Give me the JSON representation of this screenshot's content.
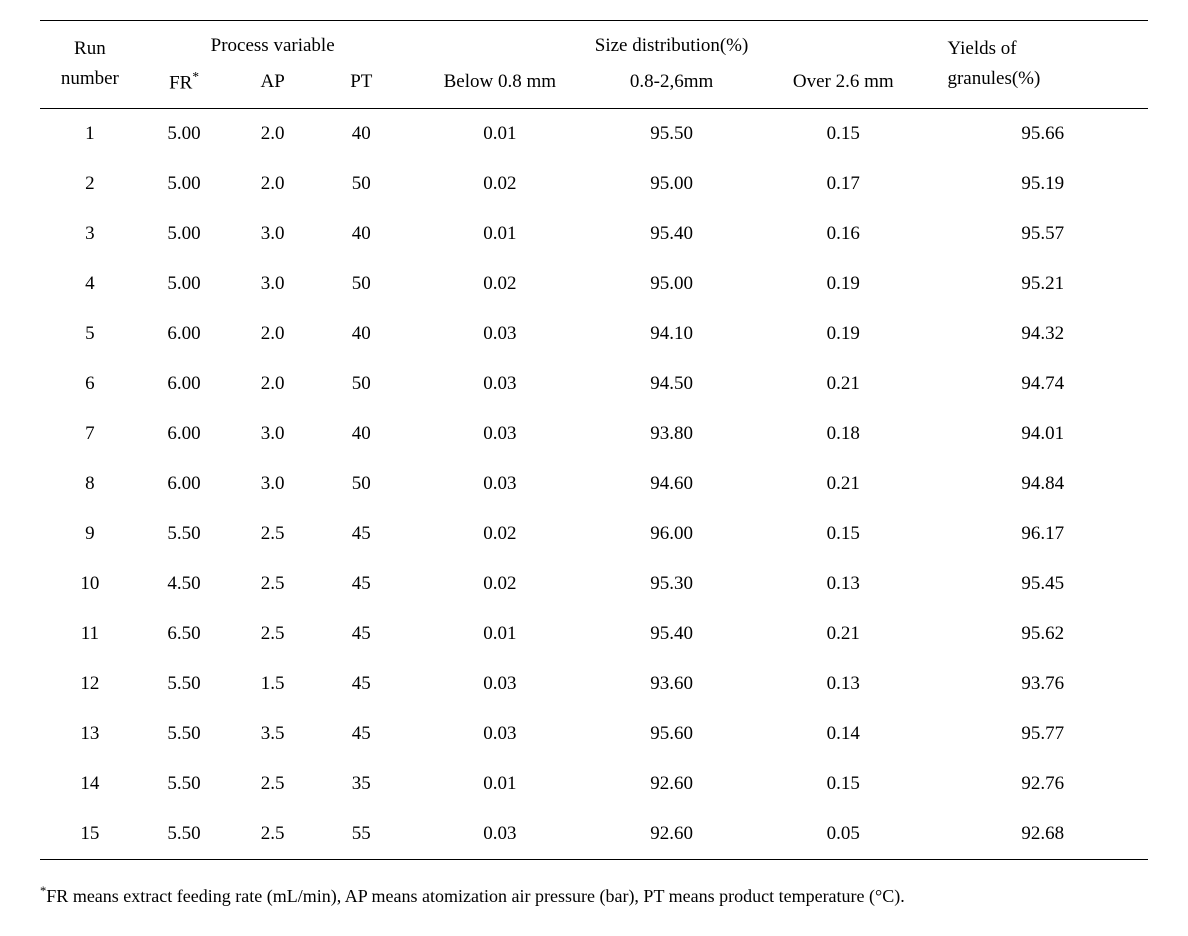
{
  "headers": {
    "run_top": "Run",
    "run_bot": "number",
    "process_var": "Process   variable",
    "fr": "FR",
    "fr_sup": "*",
    "ap": "AP",
    "pt": "PT",
    "size_dist": "Size   distribution(%)",
    "sd_below": "Below 0.8 mm",
    "sd_mid": "0.8-2,6mm",
    "sd_over": "Over 2.6 mm",
    "yield_top": "Yields   of",
    "yield_bot": "granules(%)"
  },
  "rows": [
    {
      "run": "1",
      "fr": "5.00",
      "ap": "2.0",
      "pt": "40",
      "sd1": "0.01",
      "sd2": "95.50",
      "sd3": "0.15",
      "yield": "95.66"
    },
    {
      "run": "2",
      "fr": "5.00",
      "ap": "2.0",
      "pt": "50",
      "sd1": "0.02",
      "sd2": "95.00",
      "sd3": "0.17",
      "yield": "95.19"
    },
    {
      "run": "3",
      "fr": "5.00",
      "ap": "3.0",
      "pt": "40",
      "sd1": "0.01",
      "sd2": "95.40",
      "sd3": "0.16",
      "yield": "95.57"
    },
    {
      "run": "4",
      "fr": "5.00",
      "ap": "3.0",
      "pt": "50",
      "sd1": "0.02",
      "sd2": "95.00",
      "sd3": "0.19",
      "yield": "95.21"
    },
    {
      "run": "5",
      "fr": "6.00",
      "ap": "2.0",
      "pt": "40",
      "sd1": "0.03",
      "sd2": "94.10",
      "sd3": "0.19",
      "yield": "94.32"
    },
    {
      "run": "6",
      "fr": "6.00",
      "ap": "2.0",
      "pt": "50",
      "sd1": "0.03",
      "sd2": "94.50",
      "sd3": "0.21",
      "yield": "94.74"
    },
    {
      "run": "7",
      "fr": "6.00",
      "ap": "3.0",
      "pt": "40",
      "sd1": "0.03",
      "sd2": "93.80",
      "sd3": "0.18",
      "yield": "94.01"
    },
    {
      "run": "8",
      "fr": "6.00",
      "ap": "3.0",
      "pt": "50",
      "sd1": "0.03",
      "sd2": "94.60",
      "sd3": "0.21",
      "yield": "94.84"
    },
    {
      "run": "9",
      "fr": "5.50",
      "ap": "2.5",
      "pt": "45",
      "sd1": "0.02",
      "sd2": "96.00",
      "sd3": "0.15",
      "yield": "96.17"
    },
    {
      "run": "10",
      "fr": "4.50",
      "ap": "2.5",
      "pt": "45",
      "sd1": "0.02",
      "sd2": "95.30",
      "sd3": "0.13",
      "yield": "95.45"
    },
    {
      "run": "11",
      "fr": "6.50",
      "ap": "2.5",
      "pt": "45",
      "sd1": "0.01",
      "sd2": "95.40",
      "sd3": "0.21",
      "yield": "95.62"
    },
    {
      "run": "12",
      "fr": "5.50",
      "ap": "1.5",
      "pt": "45",
      "sd1": "0.03",
      "sd2": "93.60",
      "sd3": "0.13",
      "yield": "93.76"
    },
    {
      "run": "13",
      "fr": "5.50",
      "ap": "3.5",
      "pt": "45",
      "sd1": "0.03",
      "sd2": "95.60",
      "sd3": "0.14",
      "yield": "95.77"
    },
    {
      "run": "14",
      "fr": "5.50",
      "ap": "2.5",
      "pt": "35",
      "sd1": "0.01",
      "sd2": "92.60",
      "sd3": "0.15",
      "yield": "92.76"
    },
    {
      "run": "15",
      "fr": "5.50",
      "ap": "2.5",
      "pt": "55",
      "sd1": "0.03",
      "sd2": "92.60",
      "sd3": "0.05",
      "yield": "92.68"
    }
  ],
  "footnote": {
    "sup": "*",
    "text": "FR means extract feeding rate (mL/min), AP means atomization air pressure (bar), PT means product temperature (°C)."
  }
}
